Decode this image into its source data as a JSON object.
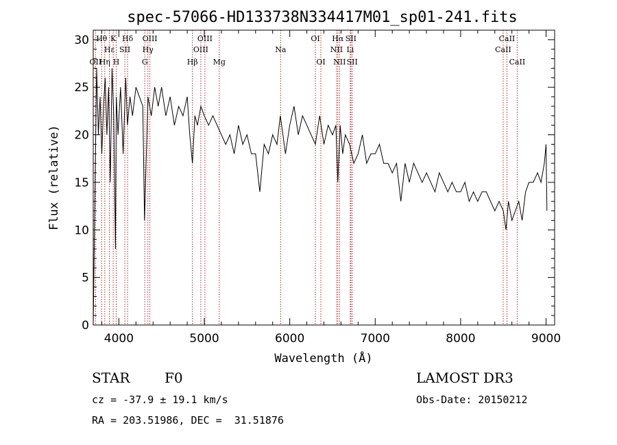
{
  "chart_data": {
    "type": "line",
    "title": "spec-57066-HD133738N334417M01_sp01-241.fits",
    "xlabel": "Wavelength (Å)",
    "ylabel": "Flux (relative)",
    "xlim": [
      3700,
      9100
    ],
    "ylim": [
      0,
      31
    ],
    "xticks": [
      4000,
      5000,
      6000,
      7000,
      8000,
      9000
    ],
    "yticks": [
      0,
      5,
      10,
      15,
      20,
      25,
      30
    ],
    "series": [
      {
        "name": "flux",
        "x": [
          3700,
          3720,
          3740,
          3760,
          3780,
          3800,
          3820,
          3840,
          3860,
          3880,
          3900,
          3920,
          3940,
          3960,
          3970,
          3990,
          4020,
          4050,
          4080,
          4100,
          4130,
          4160,
          4200,
          4240,
          4280,
          4300,
          4340,
          4380,
          4420,
          4460,
          4500,
          4550,
          4600,
          4650,
          4700,
          4750,
          4800,
          4830,
          4861,
          4890,
          4920,
          4960,
          5000,
          5050,
          5100,
          5150,
          5200,
          5250,
          5300,
          5350,
          5400,
          5450,
          5500,
          5550,
          5600,
          5650,
          5700,
          5750,
          5800,
          5850,
          5890,
          5920,
          5950,
          6000,
          6050,
          6100,
          6150,
          6200,
          6250,
          6300,
          6350,
          6400,
          6450,
          6500,
          6540,
          6563,
          6590,
          6620,
          6650,
          6700,
          6750,
          6800,
          6850,
          6900,
          6950,
          7000,
          7050,
          7100,
          7150,
          7200,
          7250,
          7300,
          7350,
          7400,
          7450,
          7500,
          7550,
          7600,
          7650,
          7700,
          7750,
          7800,
          7850,
          7900,
          7950,
          8000,
          8050,
          8100,
          8150,
          8200,
          8250,
          8300,
          8350,
          8400,
          8450,
          8500,
          8530,
          8560,
          8600,
          8640,
          8680,
          8720,
          8760,
          8800,
          8850,
          8900,
          8940,
          8980,
          9000,
          9010
        ],
        "values": [
          0,
          14,
          27,
          20,
          24,
          18,
          23,
          26,
          20,
          25,
          15,
          27,
          22,
          8,
          24,
          20,
          25,
          18,
          26,
          21,
          24,
          22,
          25,
          24,
          23,
          11,
          24,
          22,
          25,
          23,
          25,
          22,
          24,
          21,
          23,
          22,
          24,
          20,
          17,
          22,
          21,
          23,
          22,
          21,
          22,
          21,
          20,
          19,
          20,
          18,
          21,
          19,
          20,
          18,
          18,
          14,
          19,
          18,
          20,
          19,
          22,
          20,
          18,
          21,
          23,
          20,
          22,
          21,
          20,
          19,
          22,
          19,
          21,
          20,
          21,
          15,
          21,
          18,
          20,
          19,
          17,
          18,
          20,
          17,
          18,
          18,
          19,
          17,
          17,
          16,
          17,
          13,
          17,
          15,
          17,
          16,
          15,
          16,
          15,
          14,
          16,
          15,
          14,
          15,
          14,
          14,
          15,
          13,
          14,
          13,
          14,
          14,
          13,
          12,
          13,
          12,
          10,
          13,
          11,
          12,
          13,
          11,
          14,
          15,
          15,
          16,
          15,
          17,
          19,
          12
        ]
      }
    ],
    "spectral_lines": [
      {
        "name": "OII",
        "wavelength": 3727,
        "row": 2
      },
      {
        "name": "Hθ",
        "wavelength": 3798,
        "row": 0
      },
      {
        "name": "Hη",
        "wavelength": 3835,
        "row": 2
      },
      {
        "name": "K",
        "wavelength": 3934,
        "row": 0
      },
      {
        "name": "H",
        "wavelength": 3969,
        "row": 2
      },
      {
        "name": "Hε",
        "wavelength": 3889,
        "row": 1
      },
      {
        "name": "SII",
        "wavelength": 4070,
        "row": 1
      },
      {
        "name": "Hδ",
        "wavelength": 4102,
        "row": 0
      },
      {
        "name": "G",
        "wavelength": 4304,
        "row": 2
      },
      {
        "name": "Hγ",
        "wavelength": 4340,
        "row": 1
      },
      {
        "name": "OIII",
        "wavelength": 4363,
        "row": 0
      },
      {
        "name": "Hβ",
        "wavelength": 4861,
        "row": 2
      },
      {
        "name": "OIII",
        "wavelength": 4959,
        "row": 1
      },
      {
        "name": "OIII",
        "wavelength": 5007,
        "row": 0
      },
      {
        "name": "Mg",
        "wavelength": 5175,
        "row": 2
      },
      {
        "name": "Na",
        "wavelength": 5893,
        "row": 1
      },
      {
        "name": "OI",
        "wavelength": 6300,
        "row": 0
      },
      {
        "name": "OI",
        "wavelength": 6364,
        "row": 2
      },
      {
        "name": "NII",
        "wavelength": 6548,
        "row": 1
      },
      {
        "name": "Hα",
        "wavelength": 6563,
        "row": 0
      },
      {
        "name": "NII",
        "wavelength": 6583,
        "row": 2
      },
      {
        "name": "Li",
        "wavelength": 6708,
        "row": 1
      },
      {
        "name": "SII",
        "wavelength": 6716,
        "row": 0
      },
      {
        "name": "SII",
        "wavelength": 6731,
        "row": 2
      },
      {
        "name": "CaII",
        "wavelength": 8498,
        "row": 1
      },
      {
        "name": "CaII",
        "wavelength": 8542,
        "row": 0
      },
      {
        "name": "CaII",
        "wavelength": 8662,
        "row": 2
      }
    ]
  },
  "info": {
    "object_class": "STAR",
    "subclass": "F0",
    "survey": "LAMOST DR3",
    "cz": "cz = -37.9 ± 19.1 km/s",
    "obs_date": "Obs-Date: 20150212",
    "coords": "RA = 203.51986, DEC =  31.51876"
  },
  "colors": {
    "line_marker": "#b22222",
    "spectrum": "#000000"
  }
}
